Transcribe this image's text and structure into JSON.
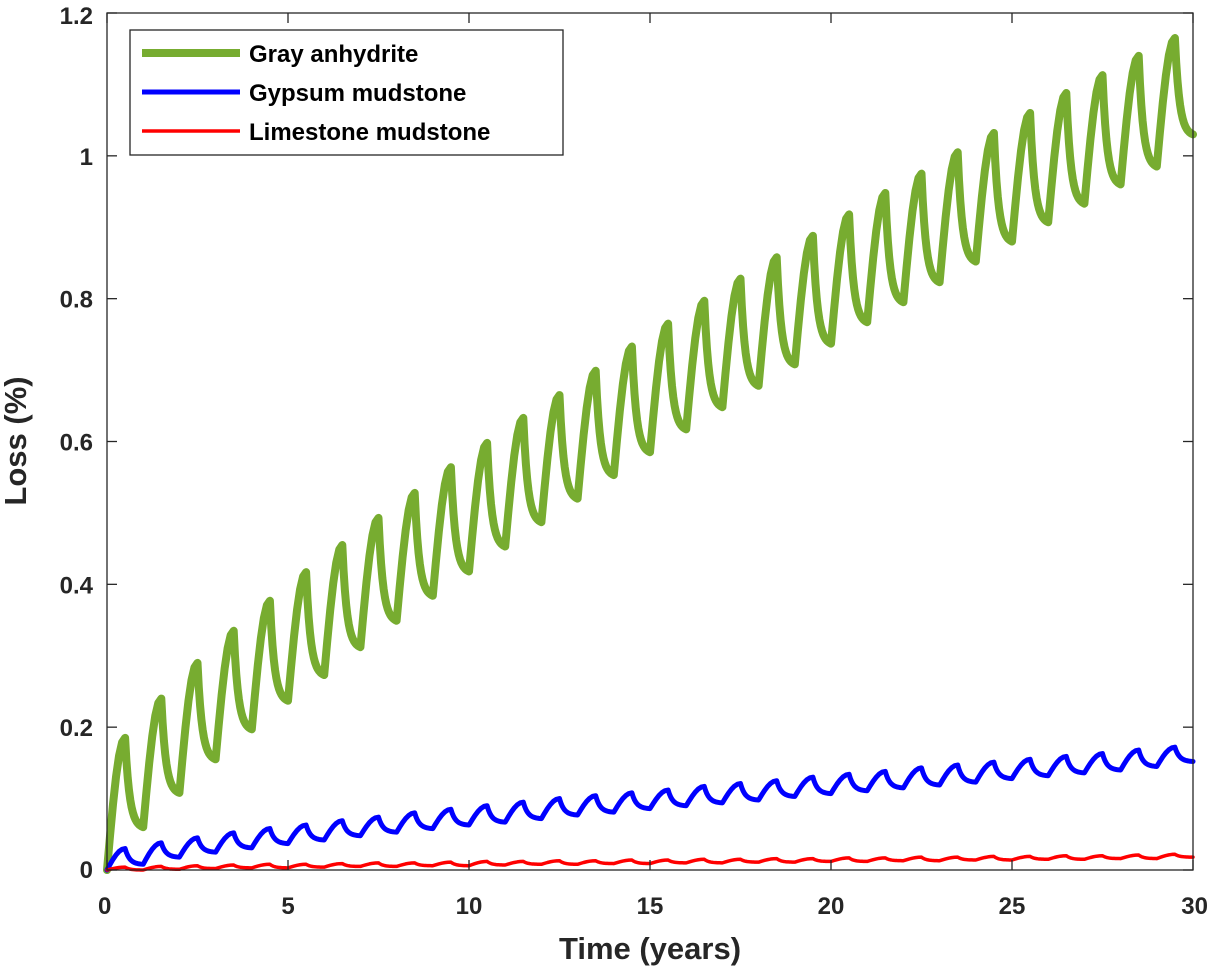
{
  "chart_data": {
    "type": "line",
    "title": "",
    "xlabel": "Time (years)",
    "ylabel": "Loss (%)",
    "xlim": [
      0,
      30
    ],
    "ylim": [
      0,
      1.2
    ],
    "xticks": [
      0,
      5,
      10,
      15,
      20,
      25,
      30
    ],
    "xtick_labels": [
      "0",
      "5",
      "10",
      "15",
      "20",
      "25",
      "30"
    ],
    "yticks": [
      0,
      0.2,
      0.4,
      0.6,
      0.8,
      1.0,
      1.2
    ],
    "ytick_labels": [
      "0",
      "0.2",
      "0.4",
      "0.6",
      "0.8",
      "1",
      "1.2"
    ],
    "grid": false,
    "legend_position": "top-left",
    "cycle_period_years": 1,
    "peak_offset_years": 0.5,
    "series": [
      {
        "name": "Gray anhydrite",
        "color": "#77AC30",
        "cycle_years": [
          0,
          1,
          2,
          3,
          4,
          5,
          6,
          7,
          8,
          9,
          10,
          11,
          12,
          13,
          14,
          15,
          16,
          17,
          18,
          19,
          20,
          21,
          22,
          23,
          24,
          25,
          26,
          27,
          28,
          29
        ],
        "start_value": 0.0,
        "peak_values": [
          0.185,
          0.24,
          0.29,
          0.335,
          0.377,
          0.417,
          0.455,
          0.493,
          0.528,
          0.564,
          0.598,
          0.633,
          0.665,
          0.699,
          0.733,
          0.765,
          0.797,
          0.828,
          0.858,
          0.888,
          0.918,
          0.948,
          0.975,
          1.005,
          1.032,
          1.06,
          1.088,
          1.113,
          1.14,
          1.165
        ],
        "trough_values": [
          0.06,
          0.108,
          0.155,
          0.197,
          0.237,
          0.273,
          0.312,
          0.349,
          0.384,
          0.418,
          0.453,
          0.487,
          0.52,
          0.553,
          0.585,
          0.617,
          0.648,
          0.678,
          0.708,
          0.737,
          0.767,
          0.795,
          0.823,
          0.852,
          0.88,
          0.907,
          0.933,
          0.96,
          0.985,
          1.03
        ]
      },
      {
        "name": "Gypsum mudstone",
        "color": "#0000FF",
        "cycle_years": [
          0,
          1,
          2,
          3,
          4,
          5,
          6,
          7,
          8,
          9,
          10,
          11,
          12,
          13,
          14,
          15,
          16,
          17,
          18,
          19,
          20,
          21,
          22,
          23,
          24,
          25,
          26,
          27,
          28,
          29
        ],
        "start_value": 0.0,
        "peak_values": [
          0.03,
          0.038,
          0.045,
          0.052,
          0.058,
          0.063,
          0.069,
          0.074,
          0.08,
          0.085,
          0.09,
          0.095,
          0.1,
          0.104,
          0.108,
          0.112,
          0.117,
          0.121,
          0.125,
          0.13,
          0.134,
          0.138,
          0.143,
          0.147,
          0.151,
          0.155,
          0.159,
          0.163,
          0.168,
          0.172
        ],
        "trough_values": [
          0.008,
          0.018,
          0.025,
          0.031,
          0.037,
          0.042,
          0.048,
          0.053,
          0.058,
          0.063,
          0.067,
          0.072,
          0.077,
          0.081,
          0.086,
          0.09,
          0.094,
          0.098,
          0.103,
          0.107,
          0.111,
          0.115,
          0.119,
          0.123,
          0.128,
          0.132,
          0.136,
          0.14,
          0.145,
          0.152
        ]
      },
      {
        "name": "Limestone mudstone",
        "color": "#FF0000",
        "cycle_years": [
          0,
          1,
          2,
          3,
          4,
          5,
          6,
          7,
          8,
          9,
          10,
          11,
          12,
          13,
          14,
          15,
          16,
          17,
          18,
          19,
          20,
          21,
          22,
          23,
          24,
          25,
          26,
          27,
          28,
          29
        ],
        "start_value": 0.0,
        "peak_values": [
          0.004,
          0.005,
          0.006,
          0.007,
          0.008,
          0.008,
          0.009,
          0.01,
          0.01,
          0.011,
          0.012,
          0.012,
          0.013,
          0.013,
          0.014,
          0.014,
          0.015,
          0.015,
          0.016,
          0.016,
          0.017,
          0.017,
          0.018,
          0.018,
          0.019,
          0.019,
          0.02,
          0.02,
          0.021,
          0.022
        ],
        "trough_values": [
          0.0,
          0.001,
          0.002,
          0.003,
          0.003,
          0.004,
          0.005,
          0.005,
          0.006,
          0.006,
          0.007,
          0.008,
          0.008,
          0.009,
          0.009,
          0.01,
          0.01,
          0.011,
          0.011,
          0.012,
          0.012,
          0.013,
          0.013,
          0.014,
          0.014,
          0.015,
          0.015,
          0.016,
          0.016,
          0.018
        ]
      }
    ]
  }
}
